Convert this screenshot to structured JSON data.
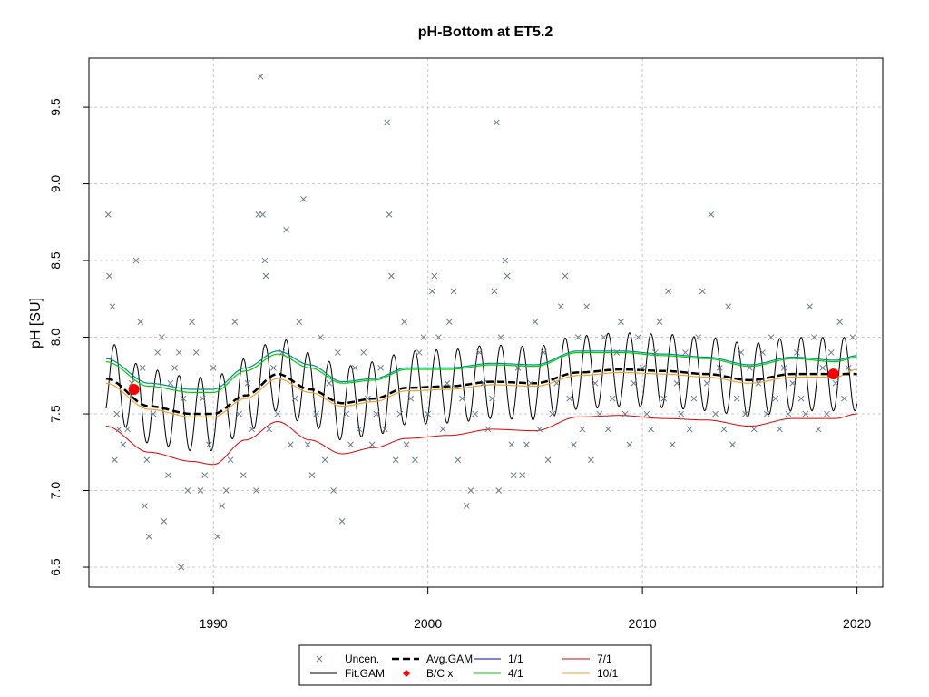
{
  "chart_data": {
    "type": "scatter",
    "title": "pH-Bottom at ET5.2",
    "ylabel": "pH [SU]",
    "xlabel": "",
    "xlim": [
      1984.2,
      2021.2
    ],
    "ylim": [
      6.37,
      9.82
    ],
    "x_ticks": [
      1990,
      2000,
      2010,
      2020
    ],
    "y_ticks": [
      6.5,
      7.0,
      7.5,
      8.0,
      8.5,
      9.0,
      9.5
    ],
    "y_tick_labels": [
      "6.5",
      "7.0",
      "7.5",
      "8.0",
      "8.5",
      "9.0",
      "9.5"
    ],
    "grid": true,
    "legend_position": "bottom",
    "colors": {
      "points": "#6b7b8c",
      "fit_gam": "#000000",
      "avg_gam": "#000000",
      "bc": "#ff0000",
      "d1_1": "#0000cd",
      "d4_1": "#00cd00",
      "d7_1": "#e00000",
      "d10_1": "#f0a030",
      "teal": "#008b8b"
    },
    "legend": [
      {
        "key": "uncen",
        "label": "Uncen."
      },
      {
        "key": "avg",
        "label": "Avg.GAM"
      },
      {
        "key": "d1",
        "label": "1/1"
      },
      {
        "key": "d7",
        "label": "7/1"
      },
      {
        "key": "fit",
        "label": "Fit.GAM"
      },
      {
        "key": "bc",
        "label": "B/C x"
      },
      {
        "key": "d4",
        "label": "4/1"
      },
      {
        "key": "d10",
        "label": "10/1"
      }
    ],
    "bc_points": [
      {
        "x": 1986.3,
        "y": 7.66
      },
      {
        "x": 2018.9,
        "y": 7.76
      }
    ],
    "trend_knots": {
      "x": [
        1985.0,
        1987.0,
        1989.0,
        1990.0,
        1991.5,
        1993.0,
        1994.5,
        1996.0,
        1997.5,
        1999.0,
        2001.0,
        2003.0,
        2005.0,
        2007.0,
        2009.0,
        2011.0,
        2013.0,
        2015.0,
        2017.0,
        2019.0,
        2020.0
      ],
      "avg": [
        7.73,
        7.55,
        7.5,
        7.5,
        7.62,
        7.76,
        7.66,
        7.57,
        7.6,
        7.67,
        7.68,
        7.71,
        7.7,
        7.77,
        7.79,
        7.78,
        7.76,
        7.72,
        7.76,
        7.76,
        7.76
      ],
      "d1_1": [
        7.42,
        7.25,
        7.19,
        7.17,
        7.33,
        7.45,
        7.33,
        7.24,
        7.28,
        7.34,
        7.36,
        7.4,
        7.39,
        7.48,
        7.49,
        7.47,
        7.46,
        7.42,
        7.47,
        7.47,
        7.5
      ],
      "d4_1": [
        7.84,
        7.68,
        7.64,
        7.64,
        7.78,
        7.89,
        7.8,
        7.7,
        7.72,
        7.79,
        7.79,
        7.82,
        7.81,
        7.9,
        7.9,
        7.88,
        7.86,
        7.81,
        7.86,
        7.84,
        7.87
      ],
      "d7_1": [
        7.86,
        7.7,
        7.66,
        7.66,
        7.8,
        7.91,
        7.82,
        7.71,
        7.73,
        7.8,
        7.8,
        7.83,
        7.82,
        7.91,
        7.91,
        7.89,
        7.87,
        7.82,
        7.87,
        7.85,
        7.88
      ],
      "d10_1": [
        7.7,
        7.53,
        7.48,
        7.48,
        7.6,
        7.73,
        7.64,
        7.55,
        7.58,
        7.65,
        7.66,
        7.69,
        7.68,
        7.75,
        7.77,
        7.76,
        7.74,
        7.7,
        7.74,
        7.74,
        7.79
      ]
    },
    "fit_gam": {
      "start": 1985.0,
      "end": 2020.0,
      "seasonal_amplitude": 0.24
    },
    "points": [
      [
        1985.1,
        8.8
      ],
      [
        1985.15,
        8.4
      ],
      [
        1985.3,
        8.2
      ],
      [
        1985.4,
        7.2
      ],
      [
        1985.5,
        7.5
      ],
      [
        1985.6,
        7.4
      ],
      [
        1985.8,
        7.3
      ],
      [
        1986.0,
        7.4
      ],
      [
        1986.2,
        7.7
      ],
      [
        1986.4,
        8.5
      ],
      [
        1986.6,
        8.1
      ],
      [
        1986.7,
        7.8
      ],
      [
        1986.8,
        6.9
      ],
      [
        1986.9,
        7.2
      ],
      [
        1987.0,
        6.7
      ],
      [
        1987.2,
        7.5
      ],
      [
        1987.4,
        7.9
      ],
      [
        1987.6,
        8.0
      ],
      [
        1987.7,
        6.8
      ],
      [
        1987.9,
        7.1
      ],
      [
        1988.0,
        7.7
      ],
      [
        1988.2,
        7.8
      ],
      [
        1988.4,
        7.9
      ],
      [
        1988.5,
        6.5
      ],
      [
        1988.6,
        7.6
      ],
      [
        1988.8,
        7.0
      ],
      [
        1989.0,
        8.1
      ],
      [
        1989.2,
        7.9
      ],
      [
        1989.4,
        7.0
      ],
      [
        1989.5,
        7.6
      ],
      [
        1989.6,
        7.1
      ],
      [
        1989.8,
        7.3
      ],
      [
        1990.0,
        7.8
      ],
      [
        1990.2,
        6.7
      ],
      [
        1990.4,
        6.9
      ],
      [
        1990.6,
        7.0
      ],
      [
        1990.8,
        7.2
      ],
      [
        1991.0,
        8.1
      ],
      [
        1991.2,
        7.5
      ],
      [
        1991.4,
        7.1
      ],
      [
        1991.6,
        7.7
      ],
      [
        1991.8,
        7.4
      ],
      [
        1992.0,
        7.0
      ],
      [
        1992.1,
        8.8
      ],
      [
        1992.2,
        9.7
      ],
      [
        1992.3,
        8.8
      ],
      [
        1992.4,
        8.5
      ],
      [
        1992.45,
        8.4
      ],
      [
        1992.6,
        7.4
      ],
      [
        1992.8,
        7.8
      ],
      [
        1993.0,
        7.5
      ],
      [
        1993.2,
        7.9
      ],
      [
        1993.4,
        8.7
      ],
      [
        1993.6,
        7.3
      ],
      [
        1993.8,
        7.6
      ],
      [
        1994.0,
        8.1
      ],
      [
        1994.2,
        8.9
      ],
      [
        1994.4,
        7.3
      ],
      [
        1994.6,
        7.1
      ],
      [
        1994.8,
        7.5
      ],
      [
        1995.0,
        8.0
      ],
      [
        1995.2,
        7.2
      ],
      [
        1995.4,
        7.7
      ],
      [
        1995.6,
        7.0
      ],
      [
        1995.8,
        7.9
      ],
      [
        1996.0,
        6.8
      ],
      [
        1996.2,
        7.5
      ],
      [
        1996.4,
        7.3
      ],
      [
        1996.6,
        7.8
      ],
      [
        1996.8,
        7.4
      ],
      [
        1997.0,
        7.9
      ],
      [
        1997.2,
        7.6
      ],
      [
        1997.4,
        7.3
      ],
      [
        1997.6,
        7.5
      ],
      [
        1997.8,
        7.8
      ],
      [
        1998.0,
        7.4
      ],
      [
        1998.1,
        9.4
      ],
      [
        1998.2,
        8.8
      ],
      [
        1998.3,
        8.4
      ],
      [
        1998.5,
        7.2
      ],
      [
        1998.7,
        7.5
      ],
      [
        1998.9,
        8.1
      ],
      [
        1999.0,
        7.3
      ],
      [
        1999.2,
        7.6
      ],
      [
        1999.4,
        7.2
      ],
      [
        1999.6,
        7.9
      ],
      [
        1999.8,
        8.0
      ],
      [
        2000.0,
        7.5
      ],
      [
        2000.2,
        8.3
      ],
      [
        2000.3,
        8.4
      ],
      [
        2000.5,
        8.0
      ],
      [
        2000.7,
        7.4
      ],
      [
        2000.9,
        7.7
      ],
      [
        2001.0,
        8.1
      ],
      [
        2001.2,
        8.3
      ],
      [
        2001.4,
        7.2
      ],
      [
        2001.6,
        7.6
      ],
      [
        2001.8,
        6.9
      ],
      [
        2002.0,
        7.0
      ],
      [
        2002.2,
        7.5
      ],
      [
        2002.4,
        7.9
      ],
      [
        2002.6,
        7.7
      ],
      [
        2002.8,
        7.4
      ],
      [
        2003.0,
        7.6
      ],
      [
        2003.1,
        8.3
      ],
      [
        2003.2,
        9.4
      ],
      [
        2003.3,
        7.0
      ],
      [
        2003.4,
        8.0
      ],
      [
        2003.6,
        8.5
      ],
      [
        2003.7,
        8.4
      ],
      [
        2003.9,
        7.3
      ],
      [
        2004.0,
        7.1
      ],
      [
        2004.2,
        7.8
      ],
      [
        2004.4,
        7.1
      ],
      [
        2004.6,
        7.3
      ],
      [
        2004.8,
        7.7
      ],
      [
        2005.0,
        8.1
      ],
      [
        2005.2,
        7.4
      ],
      [
        2005.4,
        7.9
      ],
      [
        2005.6,
        7.2
      ],
      [
        2005.8,
        7.5
      ],
      [
        2006.0,
        7.7
      ],
      [
        2006.2,
        8.2
      ],
      [
        2006.4,
        8.4
      ],
      [
        2006.6,
        7.6
      ],
      [
        2006.8,
        7.3
      ],
      [
        2007.0,
        8.0
      ],
      [
        2007.2,
        7.4
      ],
      [
        2007.4,
        8.2
      ],
      [
        2007.6,
        7.2
      ],
      [
        2007.8,
        7.7
      ],
      [
        2008.0,
        7.5
      ],
      [
        2008.2,
        8.0
      ],
      [
        2008.4,
        7.4
      ],
      [
        2008.6,
        7.6
      ],
      [
        2008.8,
        7.9
      ],
      [
        2009.0,
        8.1
      ],
      [
        2009.2,
        7.5
      ],
      [
        2009.4,
        7.3
      ],
      [
        2009.6,
        7.7
      ],
      [
        2009.8,
        8.0
      ],
      [
        2010.0,
        7.8
      ],
      [
        2010.2,
        7.5
      ],
      [
        2010.4,
        7.4
      ],
      [
        2010.6,
        7.9
      ],
      [
        2010.8,
        8.1
      ],
      [
        2011.0,
        7.6
      ],
      [
        2011.2,
        8.3
      ],
      [
        2011.4,
        7.3
      ],
      [
        2011.6,
        7.7
      ],
      [
        2011.8,
        7.5
      ],
      [
        2012.0,
        7.9
      ],
      [
        2012.2,
        7.4
      ],
      [
        2012.4,
        7.6
      ],
      [
        2012.6,
        8.0
      ],
      [
        2012.8,
        8.3
      ],
      [
        2013.0,
        7.7
      ],
      [
        2013.2,
        8.8
      ],
      [
        2013.4,
        7.5
      ],
      [
        2013.6,
        7.8
      ],
      [
        2013.8,
        7.4
      ],
      [
        2014.0,
        8.2
      ],
      [
        2014.2,
        7.3
      ],
      [
        2014.4,
        7.6
      ],
      [
        2014.6,
        7.9
      ],
      [
        2014.8,
        7.5
      ],
      [
        2015.0,
        7.8
      ],
      [
        2015.2,
        7.4
      ],
      [
        2015.4,
        7.7
      ],
      [
        2015.6,
        7.9
      ],
      [
        2015.8,
        7.5
      ],
      [
        2016.0,
        8.0
      ],
      [
        2016.2,
        7.6
      ],
      [
        2016.4,
        7.4
      ],
      [
        2016.6,
        7.8
      ],
      [
        2016.8,
        7.5
      ],
      [
        2017.0,
        7.7
      ],
      [
        2017.2,
        7.9
      ],
      [
        2017.4,
        7.6
      ],
      [
        2017.6,
        7.5
      ],
      [
        2017.8,
        8.2
      ],
      [
        2018.0,
        8.0
      ],
      [
        2018.2,
        7.4
      ],
      [
        2018.4,
        7.8
      ],
      [
        2018.6,
        7.5
      ],
      [
        2018.8,
        7.9
      ],
      [
        2019.0,
        7.7
      ],
      [
        2019.2,
        8.1
      ],
      [
        2019.4,
        7.6
      ],
      [
        2019.6,
        7.8
      ],
      [
        2019.8,
        8.0
      ]
    ]
  }
}
